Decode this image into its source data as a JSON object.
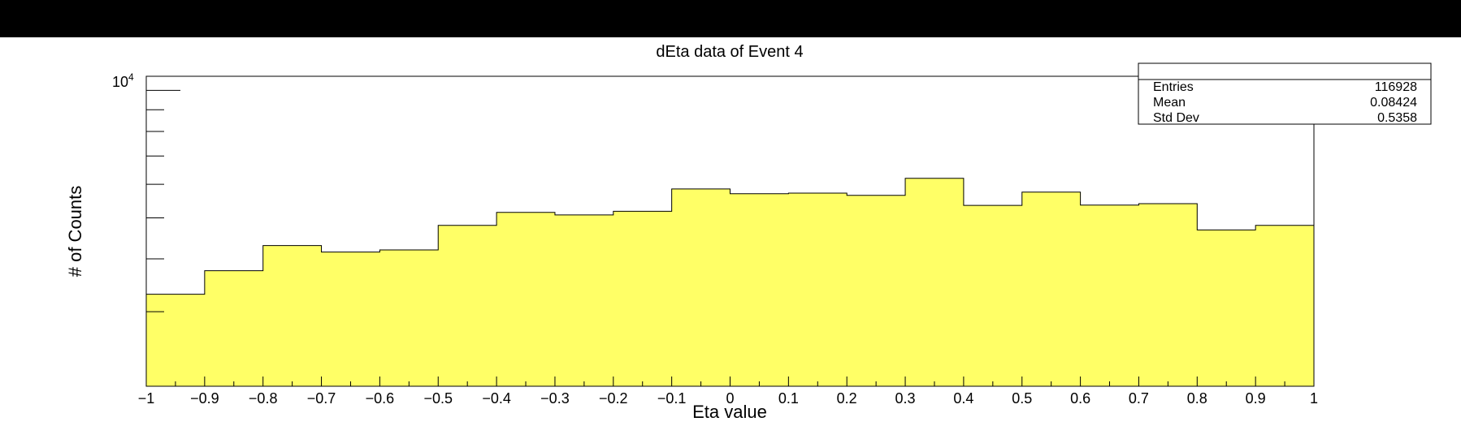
{
  "chart_data": {
    "type": "bar",
    "title": "dEta data of Event 4",
    "xlabel": "Eta value",
    "ylabel": "# of Counts",
    "xlim": [
      -1,
      1
    ],
    "ylog": true,
    "ylim": [
      2000,
      10800
    ],
    "y_top_tick_label": "10",
    "y_top_tick_exponent": "4",
    "x_tick_labels": [
      "−1",
      "−0.9",
      "−0.8",
      "−0.7",
      "−0.6",
      "−0.5",
      "−0.4",
      "−0.3",
      "−0.2",
      "−0.1",
      "0",
      "0.1",
      "0.2",
      "0.3",
      "0.4",
      "0.5",
      "0.6",
      "0.7",
      "0.8",
      "0.9",
      "1"
    ],
    "bin_edges": [
      -1.0,
      -0.9,
      -0.8,
      -0.7,
      -0.6,
      -0.5,
      -0.4,
      -0.3,
      -0.2,
      -0.1,
      0.0,
      0.1,
      0.2,
      0.3,
      0.4,
      0.5,
      0.6,
      0.7,
      0.8,
      0.9,
      1.0
    ],
    "values": [
      3300,
      3750,
      4300,
      4150,
      4200,
      4800,
      5150,
      5080,
      5180,
      5850,
      5700,
      5720,
      5650,
      6200,
      5350,
      5750,
      5360,
      5400,
      4680,
      4800
    ],
    "fill_color": "#ffff66",
    "stats": {
      "entries_label": "Entries",
      "entries": "116928",
      "mean_label": "Mean",
      "mean": "0.08424",
      "stddev_label": "Std Dev",
      "stddev": "0.5358"
    }
  }
}
